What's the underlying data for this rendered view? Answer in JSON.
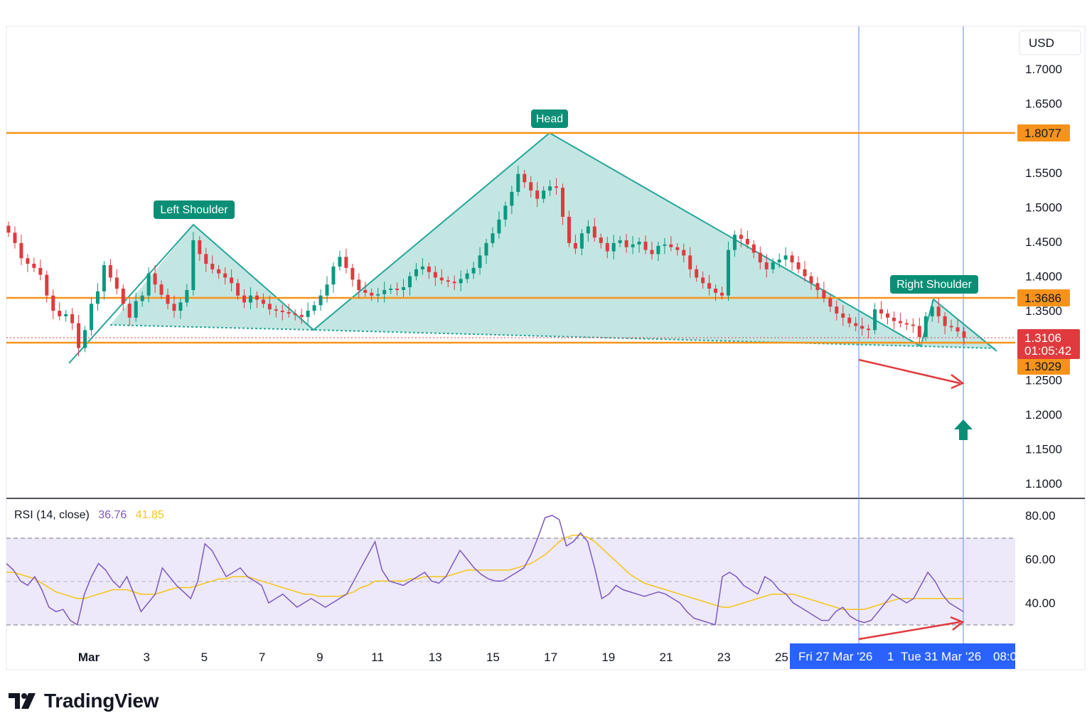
{
  "chart_data": {
    "type": "candlestick",
    "currency": "USD",
    "price_axis": {
      "ticks": [
        "1.7000",
        "1.6500",
        "1.5500",
        "1.5000",
        "1.4500",
        "1.4000",
        "1.3500",
        "1.2500",
        "1.2000",
        "1.1500",
        "1.1000"
      ],
      "range": [
        1.07,
        1.77
      ]
    },
    "date_axis": {
      "ticks": [
        "Mar",
        "3",
        "5",
        "7",
        "9",
        "11",
        "13",
        "15",
        "17",
        "19",
        "21",
        "23",
        "25"
      ]
    },
    "crosshair_dates": {
      "left": "Fri 27 Mar '26",
      "middle": "1",
      "right": "Tue 31 Mar '26",
      "partial": "08:0"
    },
    "horizontal_levels": [
      {
        "price": 1.8077,
        "label": "1.8077",
        "color": "#f7931a"
      },
      {
        "price": 1.3686,
        "label": "1.3686",
        "color": "#f7931a"
      },
      {
        "price": 1.3029,
        "label": "1.3029",
        "color": "#f7931a"
      }
    ],
    "current_price": {
      "price": 1.3106,
      "label": "1.3106",
      "countdown": "01:05:42",
      "color": "#e03a3e"
    },
    "pattern": {
      "name": "head-and-shoulders",
      "labels": [
        {
          "text": "Left Shoulder",
          "date_index": 6.1
        },
        {
          "text": "Head",
          "date_index": 17.0
        },
        {
          "text": "Right Shoulder",
          "date_index": 30.2
        }
      ],
      "points": [
        [
          1.2,
          1.276
        ],
        [
          6.0,
          1.475
        ],
        [
          10.8,
          1.318
        ],
        [
          17.0,
          1.8077
        ],
        [
          28.4,
          1.298
        ],
        [
          30.1,
          1.368
        ],
        [
          32.0,
          1.293
        ]
      ]
    },
    "candles_close": [
      1.463,
      1.448,
      1.426,
      1.418,
      1.412,
      1.402,
      1.372,
      1.35,
      1.342,
      1.345,
      1.332,
      1.296,
      1.322,
      1.36,
      1.378,
      1.416,
      1.398,
      1.382,
      1.36,
      1.34,
      1.364,
      1.372,
      1.404,
      1.388,
      1.373,
      1.36,
      1.35,
      1.362,
      1.38,
      1.452,
      1.432,
      1.418,
      1.41,
      1.404,
      1.398,
      1.39,
      1.372,
      1.362,
      1.372,
      1.366,
      1.36,
      1.352,
      1.35,
      1.348,
      1.346,
      1.344,
      1.341,
      1.35,
      1.358,
      1.372,
      1.388,
      1.414,
      1.428,
      1.412,
      1.395,
      1.38,
      1.376,
      1.372,
      1.374,
      1.38,
      1.382,
      1.38,
      1.384,
      1.4,
      1.41,
      1.414,
      1.406,
      1.398,
      1.394,
      1.392,
      1.39,
      1.396,
      1.404,
      1.412,
      1.43,
      1.448,
      1.462,
      1.482,
      1.502,
      1.522,
      1.548,
      1.536,
      1.524,
      1.512,
      1.524,
      1.53,
      1.528,
      1.486,
      1.448,
      1.44,
      1.462,
      1.472,
      1.456,
      1.448,
      1.436,
      1.448,
      1.452,
      1.442,
      1.446,
      1.45,
      1.438,
      1.432,
      1.444,
      1.446,
      1.442,
      1.438,
      1.43,
      1.41,
      1.398,
      1.39,
      1.382,
      1.376,
      1.372,
      1.438,
      1.46,
      1.454,
      1.446,
      1.434,
      1.42,
      1.41,
      1.42,
      1.424,
      1.43,
      1.42,
      1.41,
      1.4,
      1.39,
      1.38,
      1.368,
      1.356,
      1.346,
      1.34,
      1.332,
      1.328,
      1.324,
      1.322,
      1.352,
      1.346,
      1.34,
      1.335,
      1.332,
      1.33,
      1.328,
      1.312,
      1.342,
      1.356,
      1.342,
      1.328,
      1.326,
      1.32,
      1.311
    ],
    "rsi": {
      "title": "RSI (14, close)",
      "value": "36.76",
      "ma_value": "41.85",
      "axis_ticks": [
        "80.00",
        "60.00",
        "40.00"
      ],
      "range": [
        25,
        83
      ],
      "upper_band": 70,
      "mid_band": 50,
      "lower_band": 30,
      "rsi_values": [
        58,
        55,
        50,
        48,
        52,
        46,
        38,
        36,
        37,
        32,
        30,
        44,
        52,
        58,
        55,
        50,
        47,
        52,
        44,
        36,
        40,
        44,
        56,
        52,
        48,
        45,
        42,
        50,
        67,
        64,
        58,
        52,
        54,
        56,
        52,
        50,
        48,
        40,
        42,
        44,
        41,
        38,
        40,
        42,
        40,
        38,
        40,
        42,
        44,
        50,
        56,
        62,
        68,
        55,
        50,
        49,
        48,
        50,
        52,
        54,
        50,
        49,
        52,
        58,
        64,
        60,
        56,
        53,
        51,
        50,
        50,
        52,
        54,
        56,
        62,
        70,
        79,
        80,
        78,
        66,
        68,
        72,
        68,
        56,
        42,
        44,
        48,
        46,
        45,
        44,
        43,
        44,
        45,
        44,
        42,
        40,
        36,
        33,
        32,
        31,
        30,
        52,
        54,
        52,
        48,
        46,
        44,
        52,
        50,
        46,
        44,
        40,
        38,
        36,
        34,
        32,
        32,
        36,
        38,
        34,
        32,
        31,
        32,
        36,
        40,
        44,
        42,
        40,
        42,
        48,
        54,
        50,
        44,
        40,
        38,
        36
      ],
      "ma_values": [
        54,
        54,
        53,
        52,
        51,
        49,
        47,
        45,
        44,
        43,
        42,
        42,
        43,
        44,
        45,
        46,
        46,
        46,
        45,
        44,
        44,
        44,
        45,
        46,
        47,
        47,
        47,
        48,
        49,
        50,
        51,
        51,
        52,
        52,
        52,
        51,
        50,
        49,
        48,
        47,
        46,
        45,
        44,
        44,
        43,
        43,
        43,
        43,
        44,
        45,
        47,
        48,
        50,
        50,
        50,
        50,
        50,
        51,
        51,
        52,
        52,
        52,
        52,
        53,
        54,
        55,
        55,
        55,
        55,
        55,
        55,
        55,
        56,
        57,
        58,
        60,
        62,
        65,
        68,
        70,
        71,
        71,
        70,
        68,
        65,
        62,
        59,
        56,
        53,
        51,
        49,
        48,
        47,
        46,
        45,
        44,
        43,
        42,
        41,
        40,
        39,
        38,
        38,
        39,
        40,
        41,
        42,
        43,
        44,
        44,
        44,
        44,
        43,
        42,
        41,
        40,
        39,
        38,
        37,
        37,
        37,
        37,
        38,
        39,
        40,
        41,
        42,
        42,
        42,
        42,
        42,
        42,
        42,
        42,
        42,
        41.85
      ]
    },
    "annotations": [
      {
        "type": "arrow",
        "color": "#e03a3e",
        "description": "bearish arrow on price"
      },
      {
        "type": "arrow",
        "color": "#e03a3e",
        "description": "bullish divergence arrow on RSI"
      },
      {
        "type": "up-arrow",
        "color": "#0a8f76"
      }
    ]
  },
  "brand": {
    "name": "TradingView"
  }
}
